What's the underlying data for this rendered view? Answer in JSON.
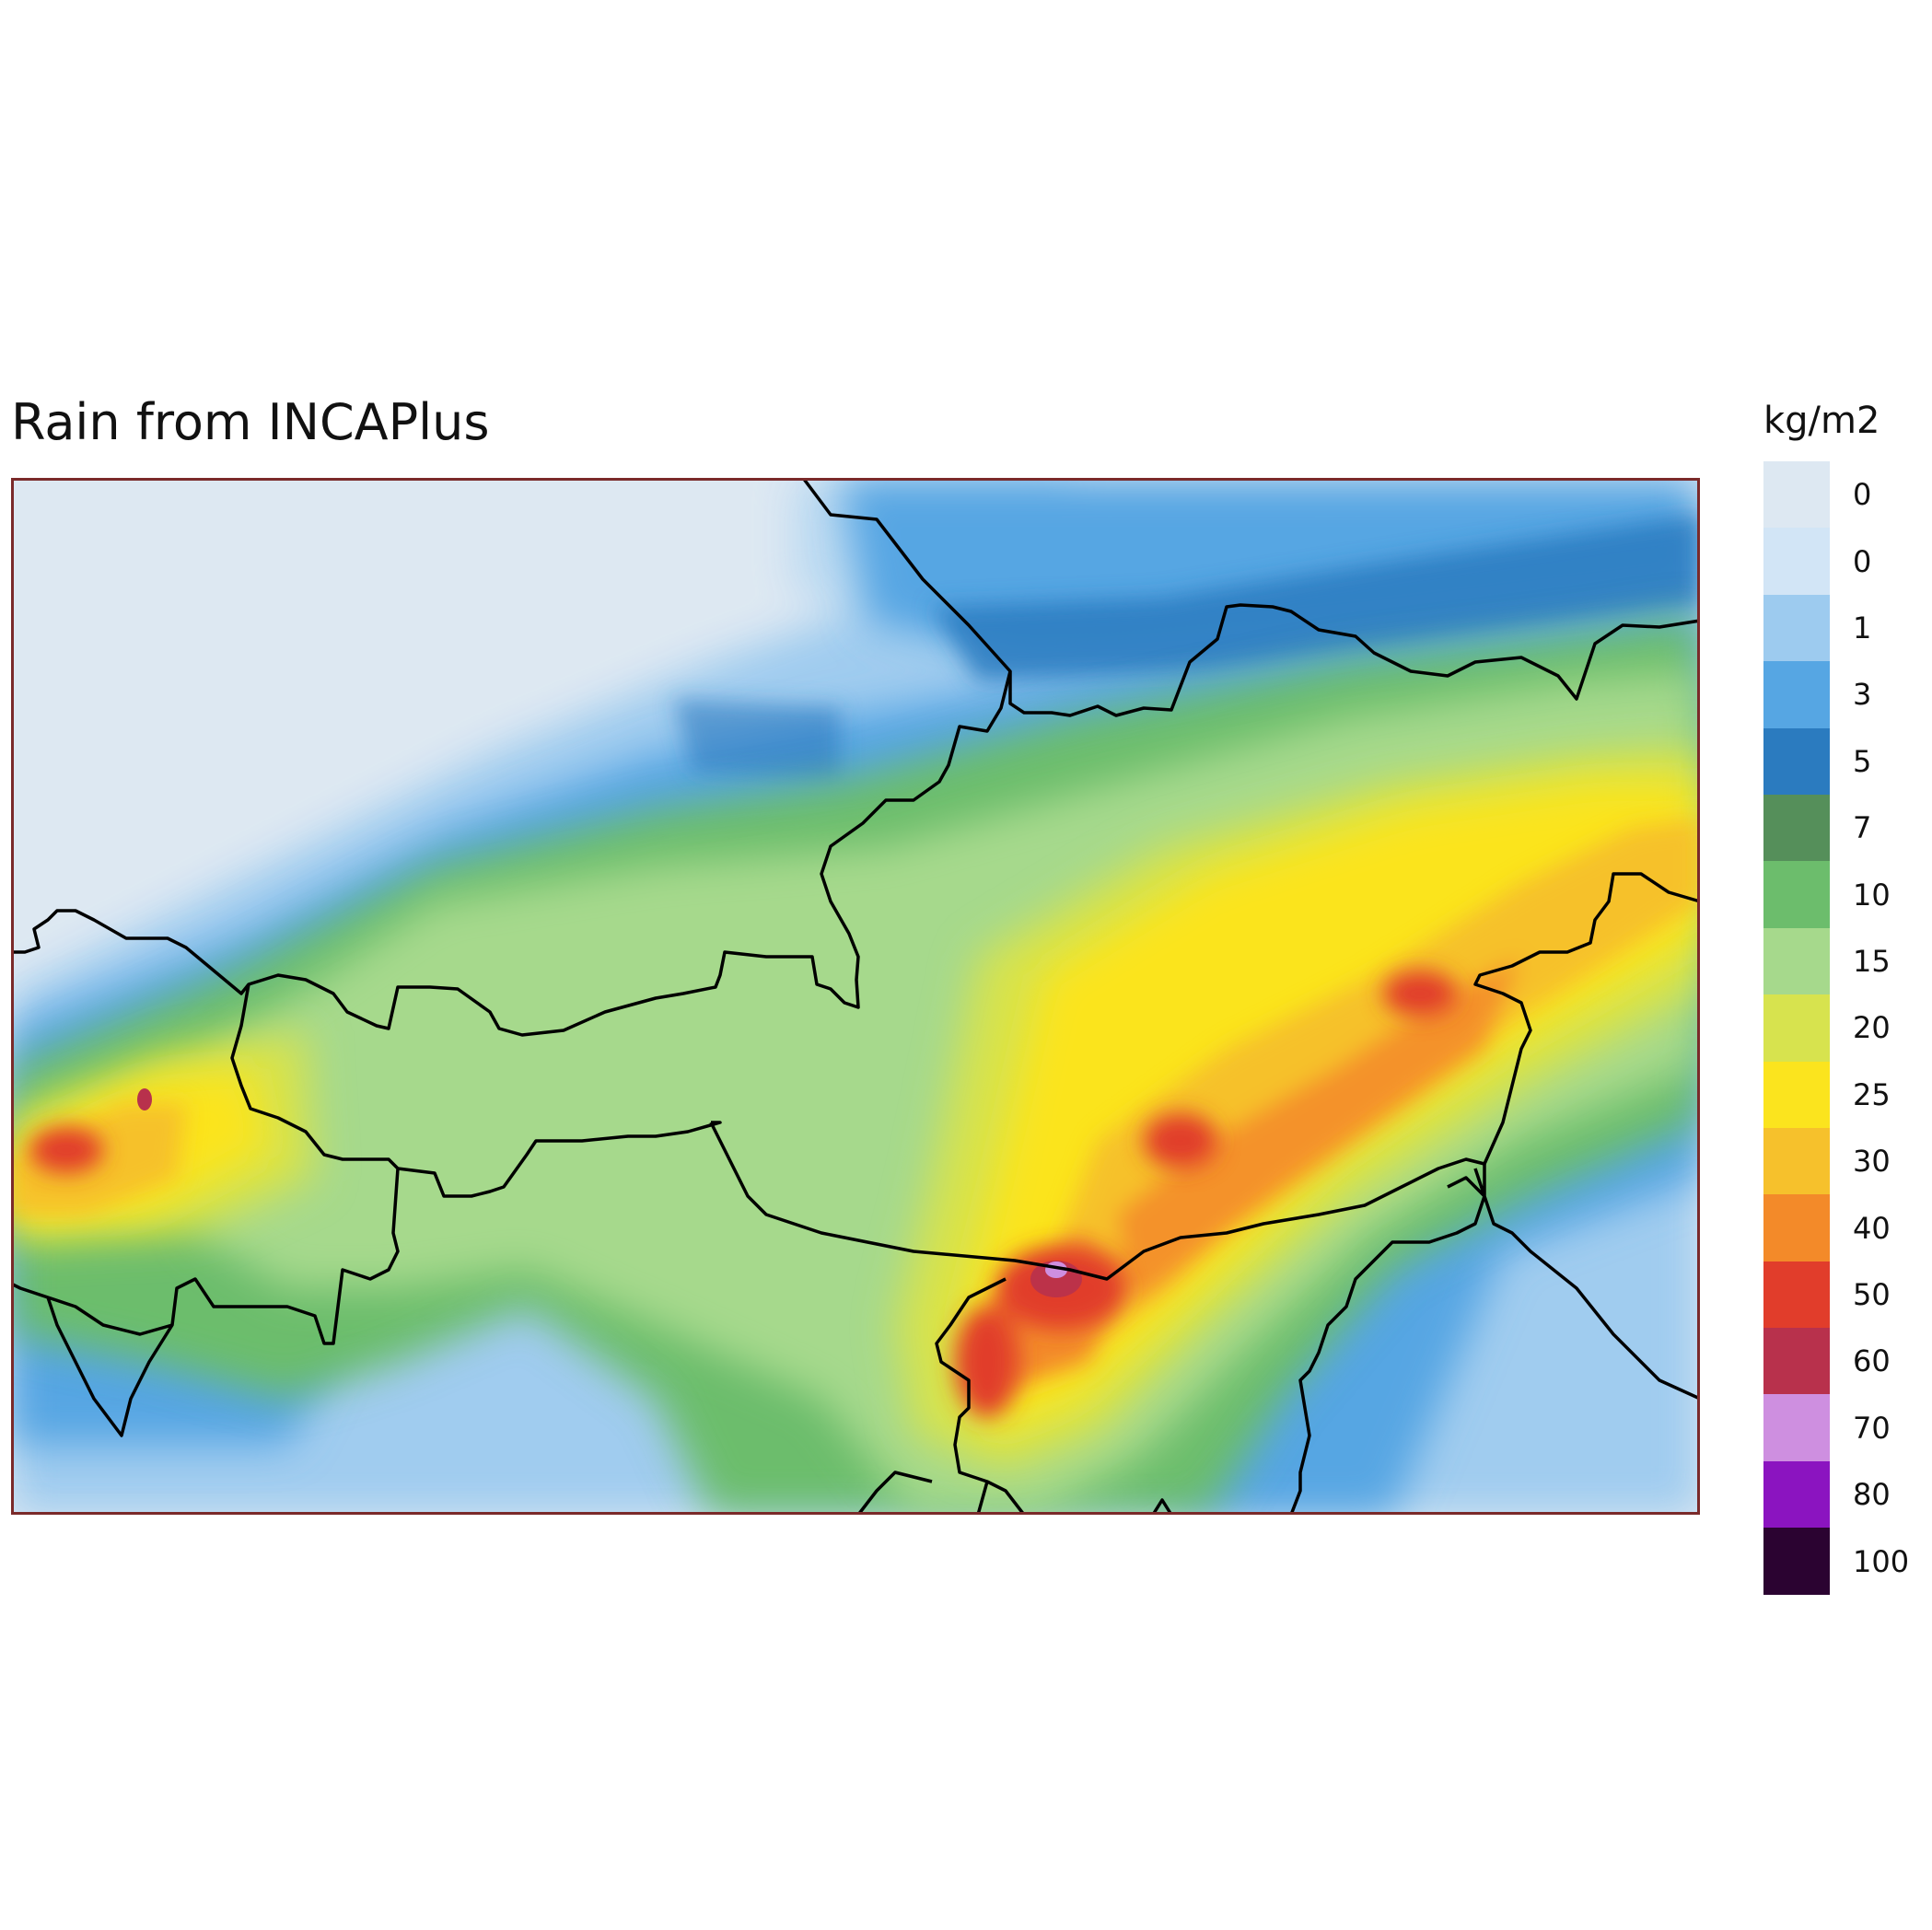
{
  "title": "Rain from INCAPlus",
  "legend": {
    "unit": "kg/m2",
    "labels": [
      "0",
      "0",
      "1",
      "3",
      "5",
      "7",
      "10",
      "15",
      "20",
      "25",
      "30",
      "40",
      "50",
      "60",
      "70",
      "80",
      "100"
    ],
    "colors": [
      "#dde8f2",
      "#d2e5f6",
      "#9dcbef",
      "#56a6e3",
      "#2b7bbf",
      "#558f5a",
      "#6cbd6c",
      "#a6d98c",
      "#d7e34e",
      "#fbe41e",
      "#f6c12c",
      "#f38a29",
      "#e13d2b",
      "#b8314c",
      "#ce8fe0",
      "#8b14c0",
      "#2b0331"
    ]
  },
  "map": {
    "background_color": "#dde8f2",
    "border_color": "#7a2a2a",
    "boundary_color": "#000000"
  }
}
